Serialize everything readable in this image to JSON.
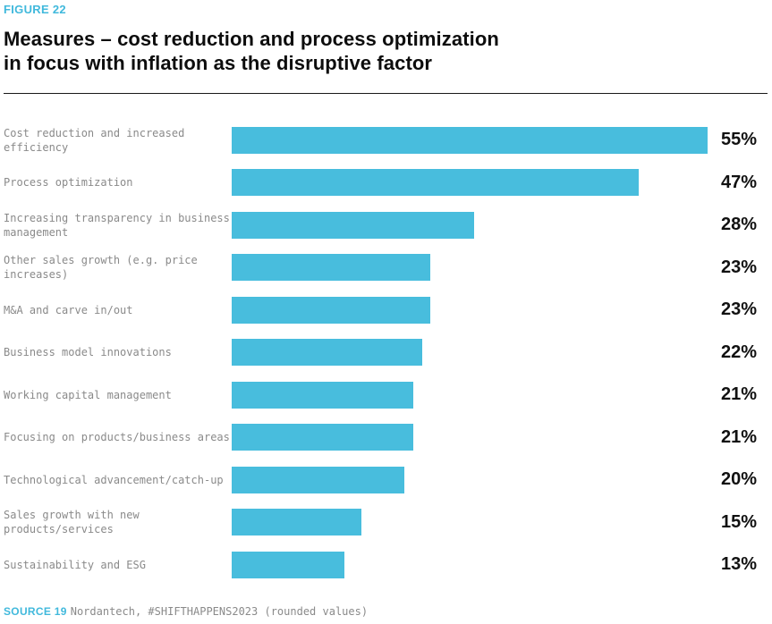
{
  "figure_label": "FIGURE 22",
  "title": {
    "line1": "Measures – cost reduction and process optimization",
    "line2": "in focus with inflation as the disruptive factor"
  },
  "colors": {
    "accent": "#48bddd",
    "label_gray": "#8a8a8a",
    "value_black": "#111111",
    "divider": "#1a1a1a"
  },
  "chart_data": {
    "type": "bar",
    "orientation": "horizontal",
    "title": "Measures – cost reduction and process optimization in focus with inflation as the disruptive factor",
    "categories": [
      "Cost reduction and increased efficiency",
      "Process optimization",
      "Increasing transparency in business management",
      "Other sales growth (e.g. price increases)",
      "M&A and carve in/out",
      "Business model innovations",
      "Working capital management",
      "Focusing on products/business areas",
      "Technological advancement/catch-up",
      "Sales growth with new products/services",
      "Sustainability and ESG"
    ],
    "values": [
      55,
      47,
      28,
      23,
      23,
      22,
      21,
      21,
      20,
      15,
      13
    ],
    "value_labels": [
      "55%",
      "47%",
      "28%",
      "23%",
      "23%",
      "22%",
      "21%",
      "21%",
      "20%",
      "15%",
      "13%"
    ],
    "value_suffix": "%",
    "xlim": [
      0,
      55
    ],
    "grid": false,
    "legend": false
  },
  "source": {
    "prefix": "SOURCE 19",
    "text": "Nordantech, #SHIFTHAPPENS2023 (rounded values)"
  }
}
